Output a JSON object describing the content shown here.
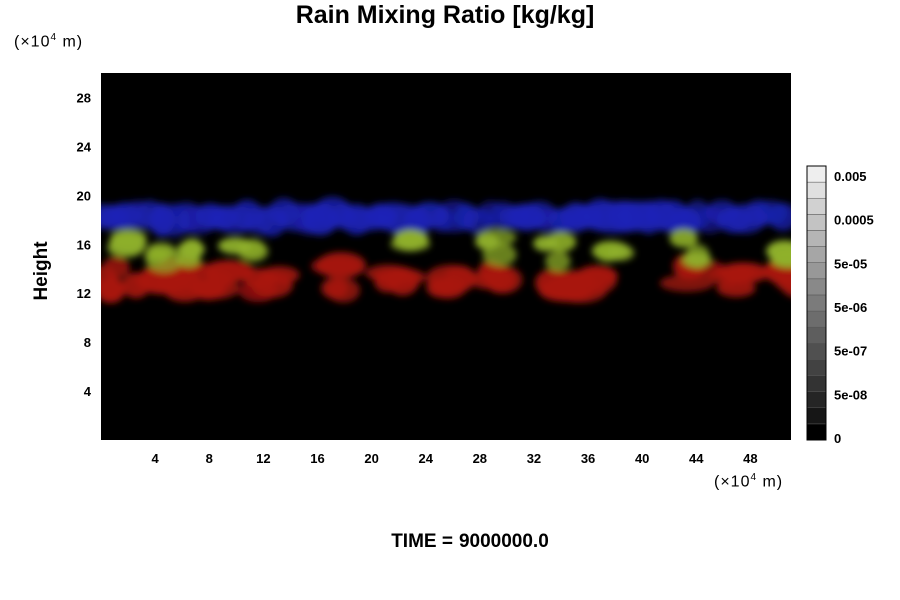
{
  "chart_data": {
    "type": "heatmap",
    "title": "Rain Mixing Ratio [kg/kg]",
    "ylabel": "Height",
    "xlabel": "",
    "axis_unit": {
      "prefix": "(×10",
      "exp": "4",
      "suffix": " m)"
    },
    "x_ticks": [
      4,
      8,
      12,
      16,
      20,
      24,
      28,
      32,
      36,
      40,
      44,
      48
    ],
    "y_ticks": [
      4,
      8,
      12,
      16,
      20,
      24,
      28
    ],
    "xlim": [
      0,
      51
    ],
    "ylim": [
      0,
      30
    ],
    "grid": false,
    "colorbar": {
      "labels": [
        "0",
        "5e-08",
        "5e-07",
        "5e-06",
        "5e-05",
        "0.0005",
        "0.005"
      ],
      "levels": 17,
      "colors": [
        "#000000",
        "#ffffff"
      ]
    },
    "layers": [
      {
        "color": "#1c22b8",
        "band": [
          17,
          19.5
        ]
      },
      {
        "color": "#8fb02a",
        "band": [
          14,
          17
        ]
      },
      {
        "color": "#a8160f",
        "band": [
          11.5,
          15
        ]
      }
    ],
    "green_cells_x": [
      1.5,
      4.5,
      7,
      10.5,
      22.5,
      29,
      33.5,
      38,
      43.5,
      50.5
    ],
    "red_cells_x": [
      1,
      3.5,
      6,
      8.5,
      12.5,
      17,
      22,
      26,
      29.5,
      34,
      36,
      44,
      47,
      50.5
    ]
  },
  "footer": {
    "time_label": "TIME =",
    "time_value": "9000000.0"
  }
}
